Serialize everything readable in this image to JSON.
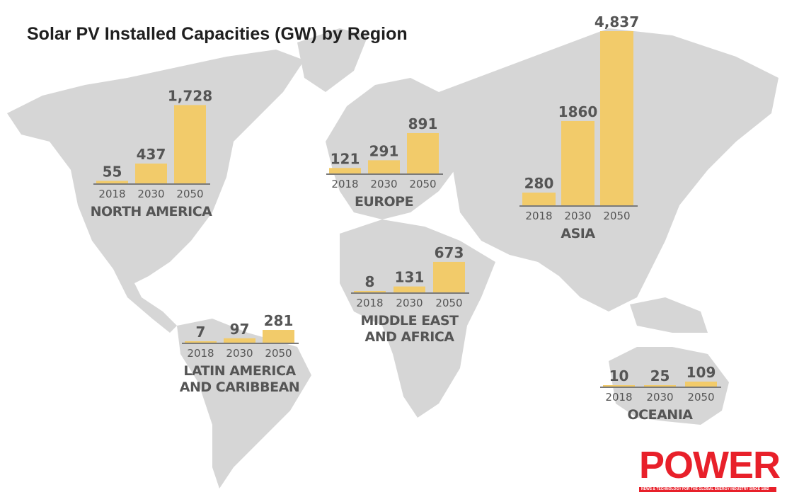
{
  "title": "Solar PV Installed Capacities (GW) by Region",
  "colors": {
    "bar": "#f2cb6a",
    "map": "#d6d6d6",
    "text": "#555555",
    "axis": "#7a7a7a",
    "logo": "#e8202a"
  },
  "logo": {
    "word": "POWER",
    "tagline": "NEWS & TECHNOLOGY FOR THE GLOBAL ENERGY INDUSTRY SINCE 1882"
  },
  "chart_data": {
    "type": "bar",
    "title": "Solar PV Installed Capacities (GW) by Region",
    "categories": [
      "2018",
      "2030",
      "2050"
    ],
    "unit": "GW",
    "groups": [
      {
        "name": "NORTH AMERICA",
        "name_lines": [
          "NORTH AMERICA"
        ],
        "values": [
          55,
          437,
          1728
        ],
        "labels": [
          "55",
          "437",
          "1,728"
        ]
      },
      {
        "name": "EUROPE",
        "name_lines": [
          "EUROPE"
        ],
        "values": [
          121,
          291,
          891
        ],
        "labels": [
          "121",
          "291",
          "891"
        ]
      },
      {
        "name": "ASIA",
        "name_lines": [
          "ASIA"
        ],
        "values": [
          280,
          1860,
          4837
        ],
        "labels": [
          "280",
          "1860",
          "4,837"
        ]
      },
      {
        "name": "MIDDLE EAST AND AFRICA",
        "name_lines": [
          "MIDDLE EAST",
          "AND AFRICA"
        ],
        "values": [
          8,
          131,
          673
        ],
        "labels": [
          "8",
          "131",
          "673"
        ]
      },
      {
        "name": "LATIN AMERICA AND CARIBBEAN",
        "name_lines": [
          "LATIN AMERICA",
          "AND CARIBBEAN"
        ],
        "values": [
          7,
          97,
          281
        ],
        "labels": [
          "7",
          "97",
          "281"
        ]
      },
      {
        "name": "OCEANIA",
        "name_lines": [
          "OCEANIA"
        ],
        "values": [
          10,
          25,
          109
        ],
        "labels": [
          "10",
          "25",
          "109"
        ]
      }
    ]
  }
}
